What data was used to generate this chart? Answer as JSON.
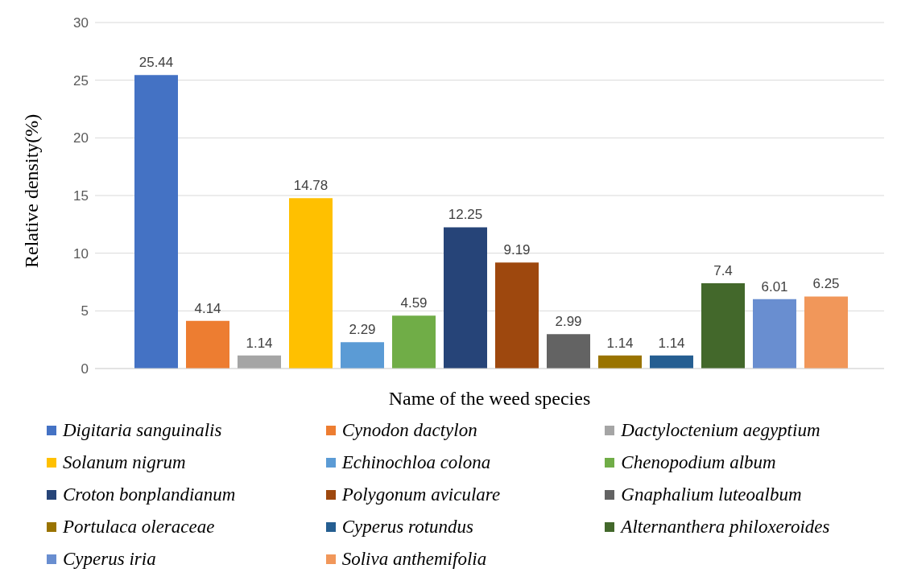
{
  "chart_data": {
    "type": "bar",
    "xlabel": "Name of the weed species",
    "ylabel": "Relative density(%)",
    "categories": [
      null
    ],
    "ylim": [
      0,
      30
    ],
    "yticks": [
      0,
      5,
      10,
      15,
      20,
      25,
      30
    ],
    "grid": "y",
    "legend": "bottom",
    "data_labels": true,
    "series": [
      {
        "name": "Digitaria sanguinalis",
        "color": "#4472c4",
        "values": [
          25.44
        ]
      },
      {
        "name": "Cynodon dactylon",
        "color": "#ed7d31",
        "values": [
          4.14
        ]
      },
      {
        "name": "Dactyloctenium aegyptium",
        "color": "#a5a5a5",
        "values": [
          1.14
        ]
      },
      {
        "name": "Solanum nigrum",
        "color": "#ffc000",
        "values": [
          14.78
        ]
      },
      {
        "name": "Echinochloa colona",
        "color": "#5b9bd5",
        "values": [
          2.29
        ]
      },
      {
        "name": "Chenopodium album",
        "color": "#70ad47",
        "values": [
          4.59
        ]
      },
      {
        "name": "Croton bonplandianum",
        "color": "#264478",
        "values": [
          12.25
        ]
      },
      {
        "name": "Polygonum aviculare",
        "color": "#9e480e",
        "values": [
          9.19
        ]
      },
      {
        "name": "Gnaphalium luteoalbum",
        "color": "#636363",
        "values": [
          2.99
        ]
      },
      {
        "name": "Portulaca oleraceae",
        "color": "#997300",
        "values": [
          1.14
        ]
      },
      {
        "name": "Cyperus rotundus",
        "color": "#255e91",
        "values": [
          1.14
        ]
      },
      {
        "name": "Alternanthera philoxeroides",
        "color": "#43682b",
        "values": [
          7.4
        ]
      },
      {
        "name": "Cyperus iria",
        "color": "#698ed0",
        "values": [
          6.01
        ]
      },
      {
        "name": "Soliva anthemifolia",
        "color": "#f1975a",
        "values": [
          6.25
        ]
      }
    ]
  }
}
